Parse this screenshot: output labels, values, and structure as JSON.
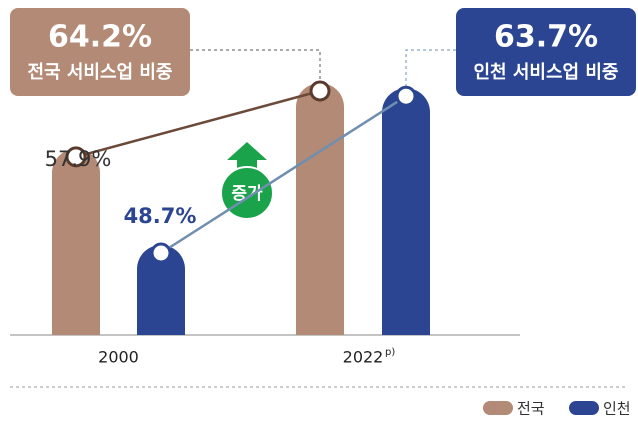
{
  "chart_data": {
    "type": "bar",
    "categories": [
      "2000",
      "2022"
    ],
    "category_note": "p)",
    "series": [
      {
        "name": "전국",
        "color": "#b38a75",
        "values": [
          57.9,
          64.2
        ],
        "value_labels": [
          "57.9%",
          "64.2%"
        ],
        "caption": "전국 서비스업 비중"
      },
      {
        "name": "인천",
        "color": "#2b4592",
        "values": [
          48.7,
          63.7
        ],
        "value_labels": [
          "48.7%",
          "63.7%"
        ],
        "caption": "인천 서비스업 비중"
      }
    ],
    "annotation": "증가",
    "legend": "bottom-right"
  }
}
